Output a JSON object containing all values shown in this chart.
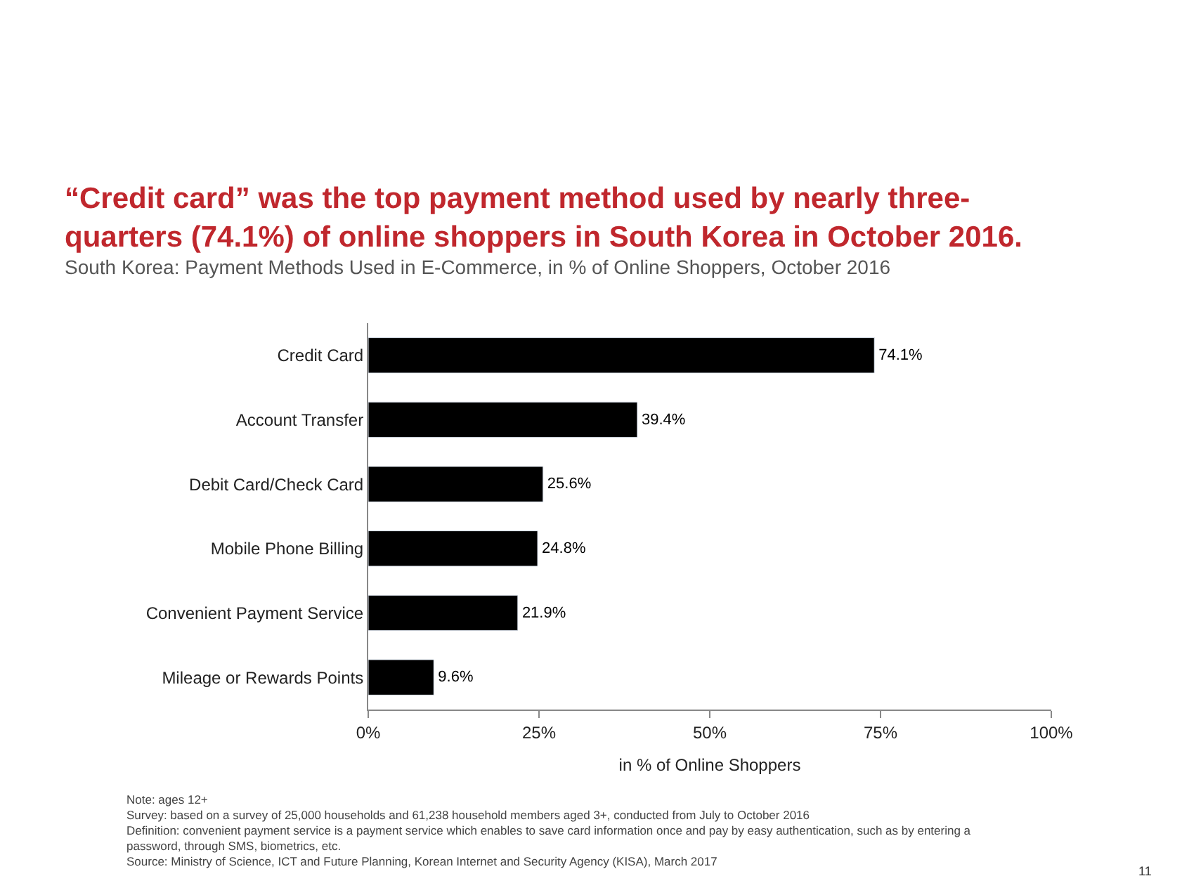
{
  "chart_data": {
    "type": "bar",
    "orientation": "horizontal",
    "title": "“Credit card” was the top payment method used by nearly three-quarters (74.1%) of online shoppers in South Korea in October 2016.",
    "subtitle": "South Korea: Payment Methods Used in E-Commerce, in % of Online Shoppers, October 2016",
    "xlabel": "in % of Online Shoppers",
    "categories": [
      "Credit Card",
      "Account Transfer",
      "Debit Card/Check Card",
      "Mobile Phone Billing",
      "Convenient Payment Service",
      "Mileage or Rewards Points"
    ],
    "values": [
      74.1,
      39.4,
      25.6,
      24.8,
      21.9,
      9.6
    ],
    "value_labels": [
      "74.1%",
      "39.4%",
      "25.6%",
      "24.8%",
      "21.9%",
      "9.6%"
    ],
    "color": "#000000",
    "xlim": [
      0,
      100
    ],
    "xticks": [
      {
        "value": 0,
        "label": "0%"
      },
      {
        "value": 25,
        "label": "25%"
      },
      {
        "value": 50,
        "label": "50%"
      },
      {
        "value": 75,
        "label": "75%"
      },
      {
        "value": 100,
        "label": "100%"
      }
    ],
    "legend": false,
    "annotations": [
      "Note: ages 12+",
      "Survey: based on a survey of 25,000 households and 61,238 household members aged 3+, conducted from July to October 2016",
      "Definition: convenient payment service is a payment service which enables to save card information once and pay by easy authentication, such as by entering a password, through SMS, biometrics, etc.",
      "Source: Ministry of Science, ICT and Future Planning, Korean Internet and Security Agency (KISA), March 2017",
      "11"
    ]
  }
}
